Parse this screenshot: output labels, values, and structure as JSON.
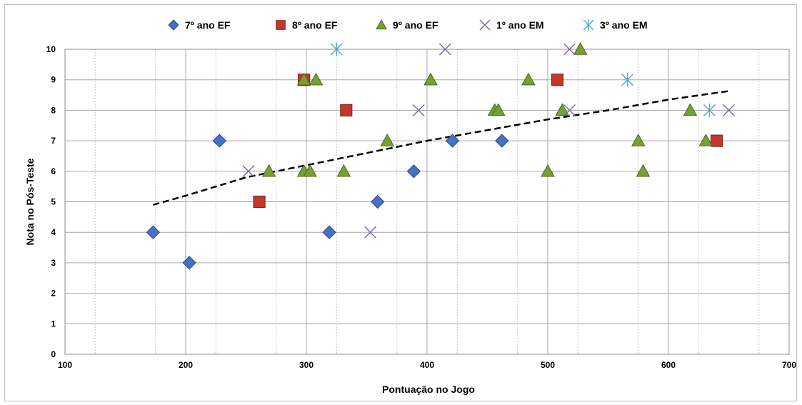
{
  "chart_data": {
    "type": "scatter",
    "title": "",
    "xlabel": "Pontuação no Jogo",
    "ylabel": "Nota no Pós-Teste",
    "xlim": [
      100,
      700
    ],
    "ylim": [
      0,
      10
    ],
    "x_ticks": [
      100,
      200,
      300,
      400,
      500,
      600,
      700
    ],
    "y_ticks": [
      0,
      1,
      2,
      3,
      4,
      5,
      6,
      7,
      8,
      9,
      10
    ],
    "grid": {
      "major_y": true,
      "major_x": true,
      "minor_x": true
    },
    "legend_position": "top",
    "series": [
      {
        "name": "7º ano EF",
        "marker": "diamond",
        "color": "#4472c4",
        "points": [
          [
            173,
            4
          ],
          [
            203,
            3
          ],
          [
            228,
            7
          ],
          [
            319,
            4
          ],
          [
            359,
            5
          ],
          [
            389,
            6
          ],
          [
            421,
            7
          ],
          [
            462,
            7
          ]
        ]
      },
      {
        "name": "8º ano EF",
        "marker": "square",
        "color": "#c0392b",
        "points": [
          [
            261,
            5
          ],
          [
            298,
            9
          ],
          [
            333,
            8
          ],
          [
            508,
            9
          ],
          [
            640,
            7
          ]
        ]
      },
      {
        "name": "9º ano EF",
        "marker": "triangle",
        "color": "#77a032",
        "points": [
          [
            269,
            6
          ],
          [
            298,
            9
          ],
          [
            298,
            6
          ],
          [
            303,
            6
          ],
          [
            308,
            9
          ],
          [
            331,
            6
          ],
          [
            367,
            7
          ],
          [
            403,
            9
          ],
          [
            456,
            8
          ],
          [
            459,
            8
          ],
          [
            484,
            9
          ],
          [
            500,
            6
          ],
          [
            512,
            8
          ],
          [
            527,
            10
          ],
          [
            575,
            7
          ],
          [
            579,
            6
          ],
          [
            618,
            8
          ],
          [
            631,
            7
          ]
        ]
      },
      {
        "name": "1º ano EM",
        "marker": "x",
        "color": "#8064a2",
        "points": [
          [
            252,
            6
          ],
          [
            353,
            4
          ],
          [
            393,
            8
          ],
          [
            415,
            10
          ],
          [
            518,
            10
          ],
          [
            518,
            8
          ],
          [
            650,
            8
          ]
        ]
      },
      {
        "name": "3º ano EM",
        "marker": "star",
        "color": "#4bacc6",
        "points": [
          [
            325,
            10
          ],
          [
            566,
            9
          ],
          [
            634,
            8
          ]
        ]
      }
    ],
    "trendline": {
      "type": "logarithmic",
      "style": "dashed",
      "color": "#000000",
      "points": [
        [
          173,
          4.9
        ],
        [
          200,
          5.2
        ],
        [
          250,
          5.8
        ],
        [
          300,
          6.2
        ],
        [
          350,
          6.6
        ],
        [
          400,
          7.0
        ],
        [
          450,
          7.35
        ],
        [
          500,
          7.7
        ],
        [
          550,
          8.0
        ],
        [
          600,
          8.35
        ],
        [
          650,
          8.63
        ]
      ]
    }
  }
}
